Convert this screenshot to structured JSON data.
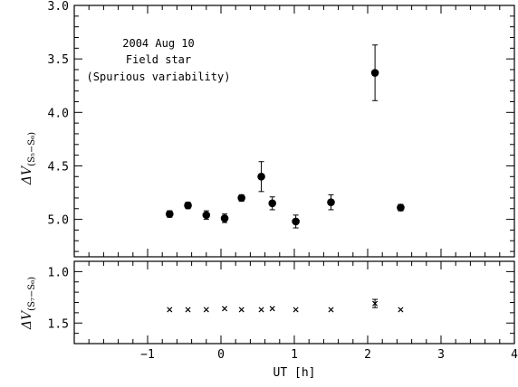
{
  "chart_data": [
    {
      "type": "scatter",
      "panel": "top",
      "annotations": [
        "2004 Aug 10",
        "Field star",
        "(Spurious variability)"
      ],
      "ylabel_main": "ΔV",
      "ylabel_sub": "(S₅−S₆)",
      "xlim": [
        -2.0,
        4.0
      ],
      "ylim": [
        5.35,
        3.0
      ],
      "y_inverted": true,
      "x_ticks": [
        -1,
        0,
        1,
        2,
        3,
        4
      ],
      "y_ticks": [
        3.0,
        3.5,
        4.0,
        4.5,
        5.0
      ],
      "y_tick_labels": [
        "3.0",
        "3.5",
        "4.0",
        "4.5",
        "5.0"
      ],
      "marker": "filled-circle",
      "series": [
        {
          "points": [
            {
              "x": -0.7,
              "y": 4.95,
              "err": 0.03
            },
            {
              "x": -0.45,
              "y": 4.87,
              "err": 0.03
            },
            {
              "x": -0.2,
              "y": 4.96,
              "err": 0.04
            },
            {
              "x": 0.05,
              "y": 4.99,
              "err": 0.04
            },
            {
              "x": 0.28,
              "y": 4.8,
              "err": 0.03
            },
            {
              "x": 0.55,
              "y": 4.6,
              "err": 0.14
            },
            {
              "x": 0.7,
              "y": 4.85,
              "err": 0.06
            },
            {
              "x": 1.02,
              "y": 5.02,
              "err": 0.06
            },
            {
              "x": 1.5,
              "y": 4.84,
              "err": 0.07
            },
            {
              "x": 2.1,
              "y": 3.63,
              "err": 0.26
            },
            {
              "x": 2.45,
              "y": 4.89,
              "err": 0.03
            }
          ]
        }
      ]
    },
    {
      "type": "scatter",
      "panel": "bottom",
      "ylabel_main": "ΔV",
      "ylabel_sub": "(S₇−S₆)",
      "xlabel": "UT [h]",
      "xlim": [
        -2.0,
        4.0
      ],
      "ylim": [
        1.7,
        0.9
      ],
      "y_inverted": true,
      "x_ticks": [
        -1,
        0,
        1,
        2,
        3,
        4
      ],
      "x_tick_labels": [
        "−1",
        "0",
        "1",
        "2",
        "3",
        "4"
      ],
      "y_ticks": [
        1.0,
        1.5
      ],
      "y_tick_labels": [
        "1.0",
        "1.5"
      ],
      "marker": "cross",
      "series": [
        {
          "points": [
            {
              "x": -0.7,
              "y": 1.37,
              "err": 0.0
            },
            {
              "x": -0.45,
              "y": 1.37,
              "err": 0.0
            },
            {
              "x": -0.2,
              "y": 1.37,
              "err": 0.0
            },
            {
              "x": 0.05,
              "y": 1.36,
              "err": 0.0
            },
            {
              "x": 0.28,
              "y": 1.37,
              "err": 0.0
            },
            {
              "x": 0.55,
              "y": 1.37,
              "err": 0.0
            },
            {
              "x": 0.7,
              "y": 1.36,
              "err": 0.0
            },
            {
              "x": 1.02,
              "y": 1.37,
              "err": 0.0
            },
            {
              "x": 1.5,
              "y": 1.37,
              "err": 0.0
            },
            {
              "x": 2.1,
              "y": 1.31,
              "err": 0.04
            },
            {
              "x": 2.45,
              "y": 1.37,
              "err": 0.0
            }
          ]
        }
      ]
    }
  ]
}
